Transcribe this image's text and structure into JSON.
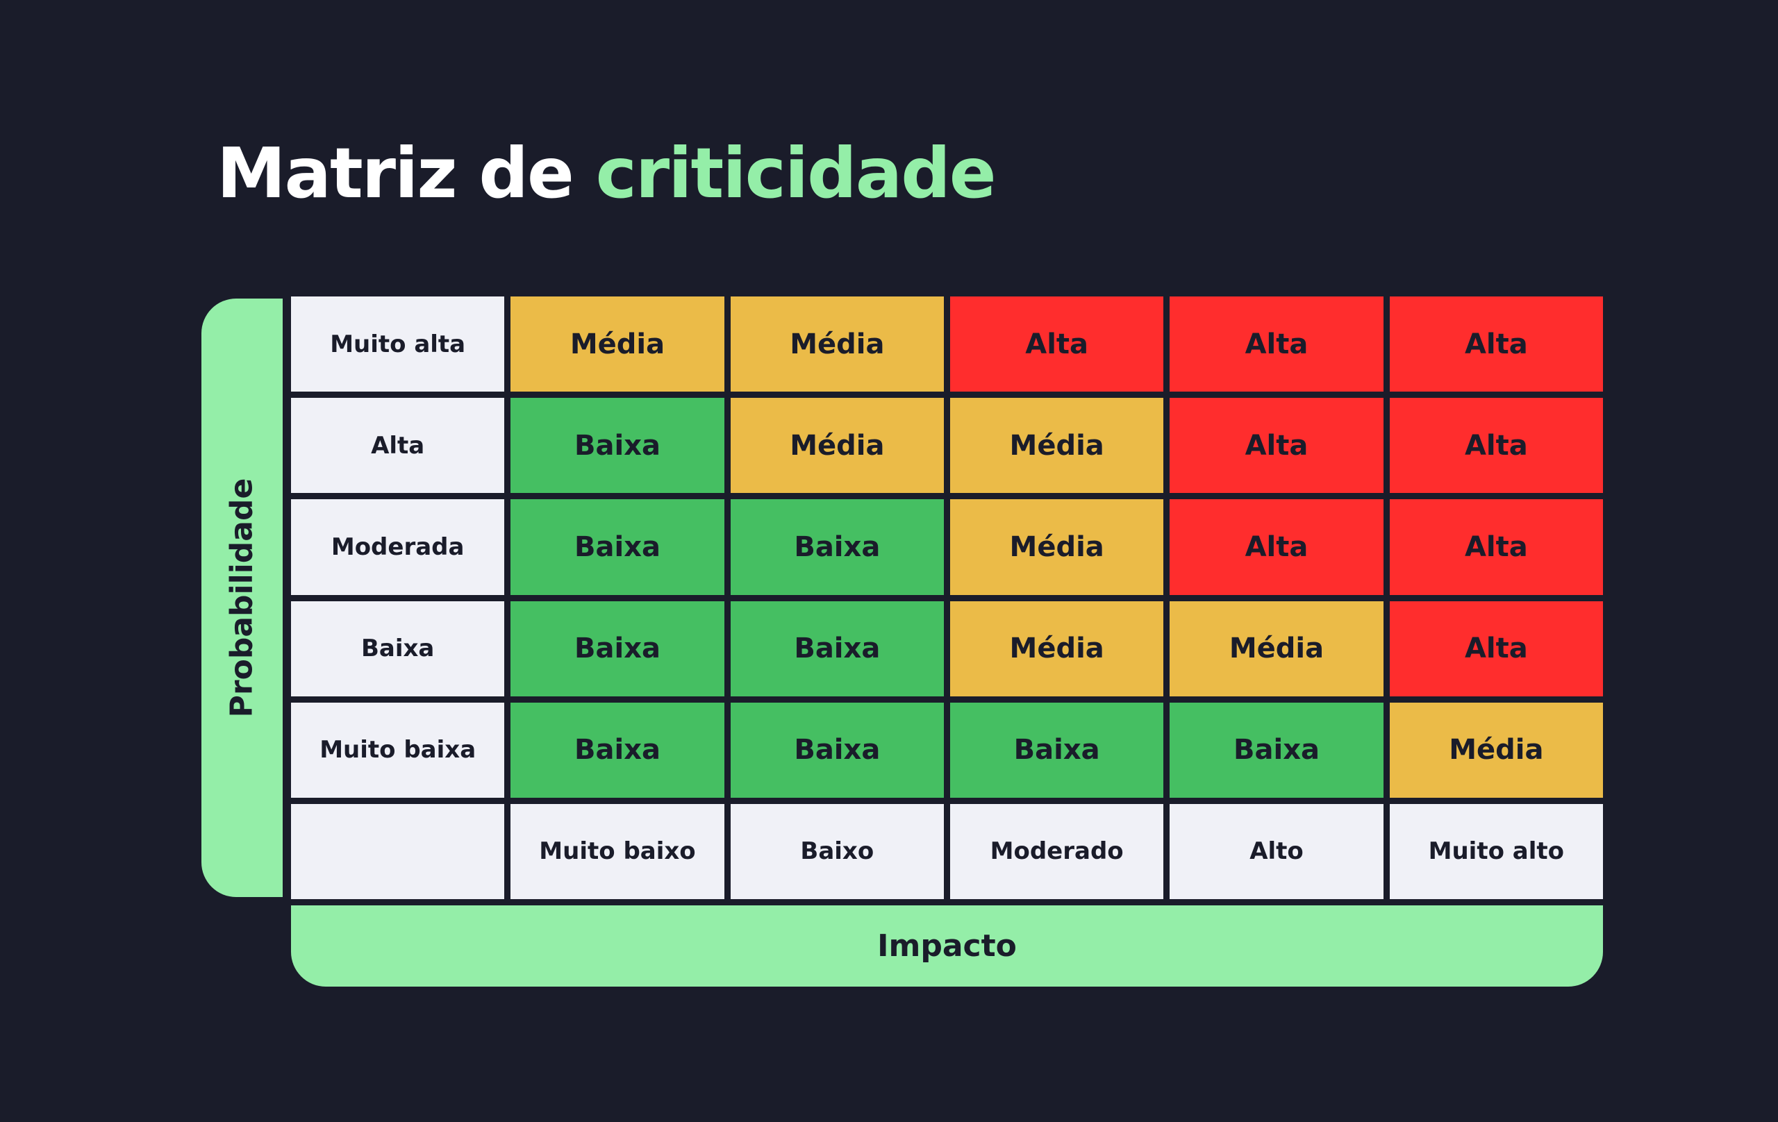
{
  "title": {
    "prefix": "Matriz de",
    "highlight": "criticidade"
  },
  "probability_axis": {
    "label": "Probabilidade",
    "levels_top_to_bottom": [
      "Muito alta",
      "Alta",
      "Moderada",
      "Baixa",
      "Muito baixa"
    ]
  },
  "impact_axis": {
    "label": "Impacto",
    "levels_left_to_right": [
      "Muito baixo",
      "Baixo",
      "Moderado",
      "Alto",
      "Muito alto"
    ]
  },
  "matrix": [
    [
      "Média",
      "Média",
      "Alta",
      "Alta",
      "Alta"
    ],
    [
      "Baixa",
      "Média",
      "Média",
      "Alta",
      "Alta"
    ],
    [
      "Baixa",
      "Baixa",
      "Média",
      "Alta",
      "Alta"
    ],
    [
      "Baixa",
      "Baixa",
      "Média",
      "Média",
      "Alta"
    ],
    [
      "Baixa",
      "Baixa",
      "Baixa",
      "Baixa",
      "Média"
    ]
  ],
  "colors": {
    "background": "#1a1c2a",
    "accent": "#94eea8",
    "label_cell": "#f0f1f7",
    "Baixa": "#45bf62",
    "Média": "#ebbb48",
    "Alta": "#ff2d2d",
    "text_dark": "#1a1c2a"
  }
}
